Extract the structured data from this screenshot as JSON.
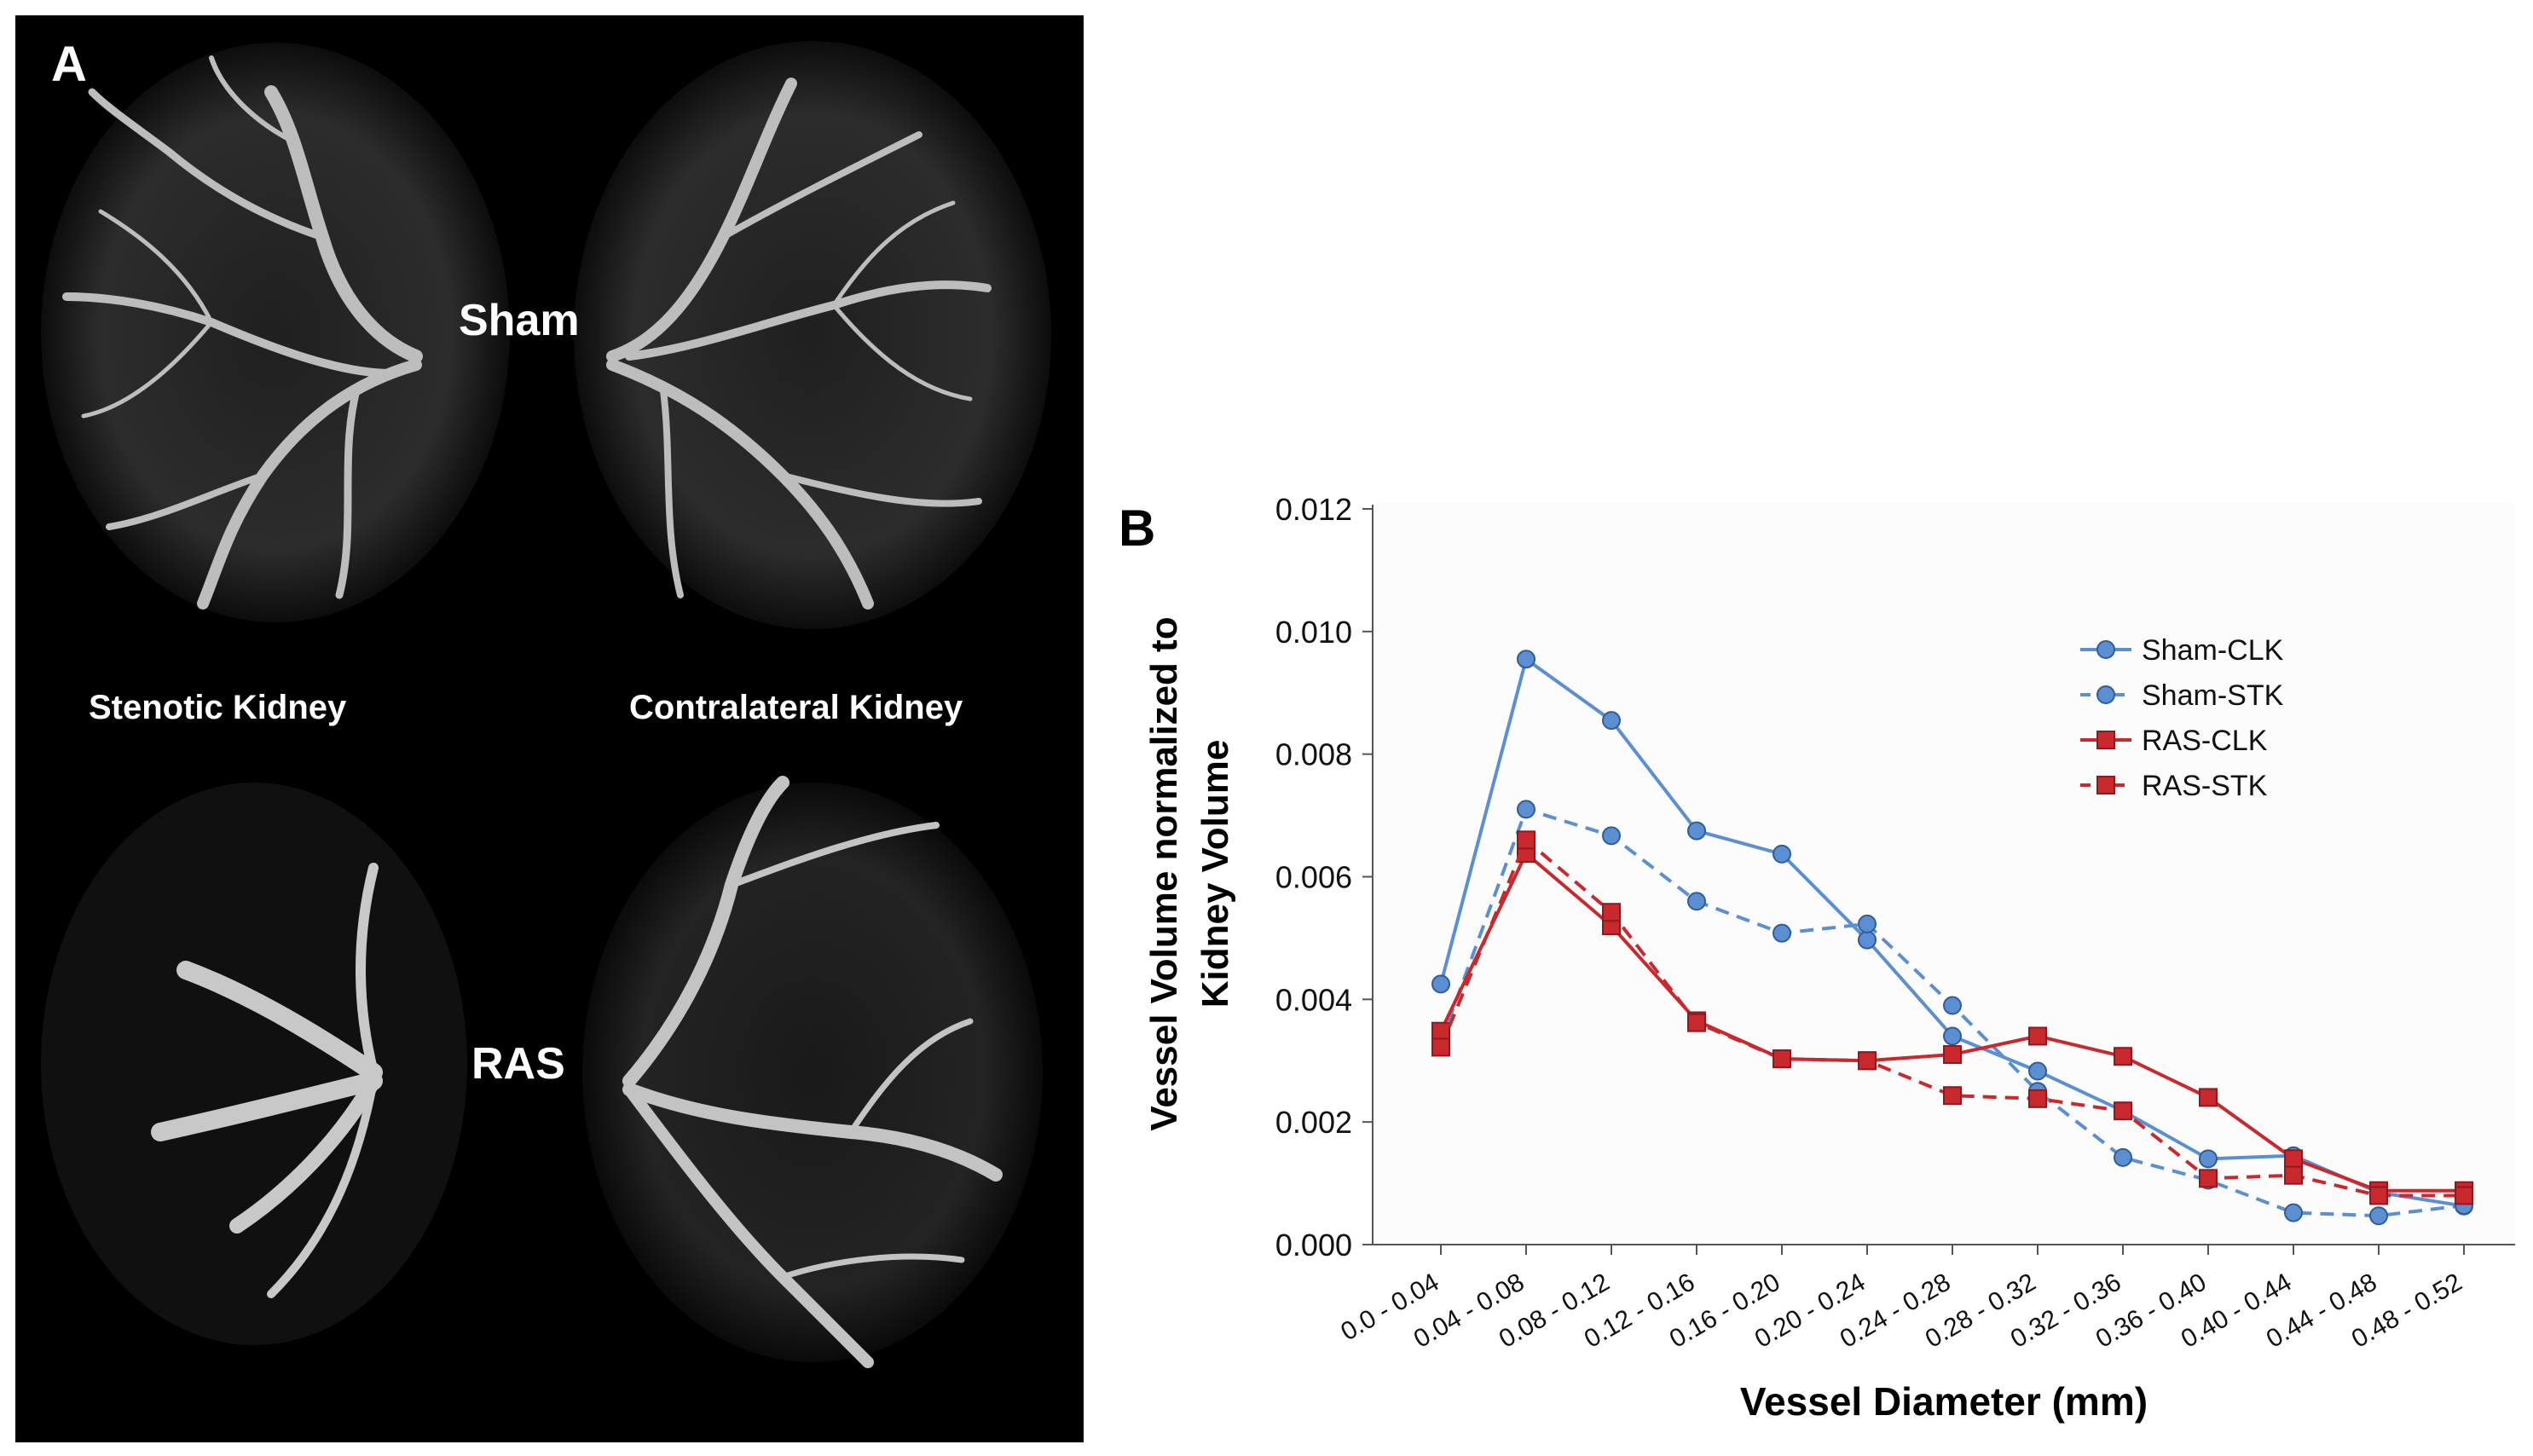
{
  "panel_a": {
    "label": "A",
    "sham_label": "Sham",
    "ras_label": "RAS",
    "stenotic_label": "Stenotic Kidney",
    "contralateral_label": "Contralateral Kidney",
    "background": "#000000"
  },
  "chart_data": {
    "type": "line",
    "panel_label": "B",
    "title": "",
    "xlabel": "Vessel Diameter (mm)",
    "ylabel_lines": [
      "Vessel Volume normalized to",
      "Kidney Volume"
    ],
    "ylim": [
      0,
      0.012
    ],
    "yticks": [
      "0.000",
      "0.002",
      "0.004",
      "0.006",
      "0.008",
      "0.010",
      "0.012"
    ],
    "grid": false,
    "legend_position": "top-right",
    "categories": [
      "0.0 - 0.04",
      "0.04 - 0.08",
      "0.08 - 0.12",
      "0.12 - 0.16",
      "0.16 - 0.20",
      "0.20 - 0.24",
      "0.24 - 0.28",
      "0.28 - 0.32",
      "0.32 - 0.36",
      "0.36 - 0.40",
      "0.40 - 0.44",
      "0.44 - 0.48",
      "0.48 - 0.52"
    ],
    "series": [
      {
        "name": "Sham-CLK",
        "color": "#5b8fd1",
        "dashed": false,
        "marker": "circle",
        "values": [
          0.00425,
          0.00955,
          0.00855,
          0.00675,
          0.00637,
          0.00497,
          0.0034,
          0.00283,
          0.00218,
          0.0014,
          0.00145,
          0.00085,
          0.00063
        ]
      },
      {
        "name": "Sham-STK",
        "color": "#5b8fd1",
        "dashed": true,
        "marker": "circle",
        "values": [
          0.0033,
          0.0071,
          0.00667,
          0.0056,
          0.00508,
          0.00523,
          0.0039,
          0.0025,
          0.00142,
          0.00105,
          0.00052,
          0.00047,
          0.00064
        ]
      },
      {
        "name": "RAS-CLK",
        "color": "#c9282d",
        "dashed": false,
        "marker": "square",
        "values": [
          0.00348,
          0.00638,
          0.0052,
          0.00365,
          0.00303,
          0.003,
          0.0031,
          0.0034,
          0.00307,
          0.0024,
          0.0014,
          0.00088,
          0.00088
        ]
      },
      {
        "name": "RAS-STK",
        "color": "#c9282d",
        "dashed": true,
        "marker": "square",
        "values": [
          0.00322,
          0.0066,
          0.00542,
          0.00362,
          0.00303,
          0.003,
          0.00243,
          0.00238,
          0.00218,
          0.00108,
          0.00113,
          0.0008,
          0.0008
        ]
      }
    ]
  }
}
